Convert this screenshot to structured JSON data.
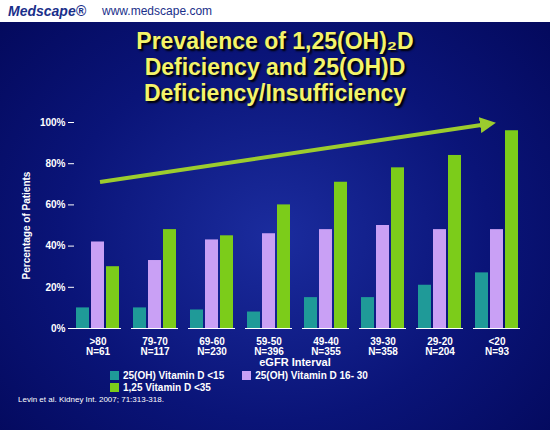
{
  "header": {
    "logo": "Medscape®",
    "url": "www.medscape.com"
  },
  "chart_data": {
    "type": "bar",
    "title": "Prevalence of 1,25(OH)₂D Deficiency and 25(OH)D Deficiency/Insufficiency",
    "categories": [
      ">80",
      "79-70",
      "69-60",
      "59-50",
      "49-40",
      "39-30",
      "29-20",
      "<20"
    ],
    "sample_sizes": [
      "N=61",
      "N=117",
      "N=230",
      "N=396",
      "N=355",
      "N=358",
      "N=204",
      "N=93"
    ],
    "x_label": "eGFR Interval",
    "y_label": "Percentage of Patients",
    "series": [
      {
        "name": "25(OH) Vitamin D <15",
        "color": "#1f9a98",
        "values": [
          10,
          10,
          9,
          8,
          15,
          15,
          21,
          27
        ]
      },
      {
        "name": "25(OH) Vitamin D 16- 30",
        "color": "#c9a0f5",
        "values": [
          42,
          33,
          43,
          46,
          48,
          50,
          48,
          48
        ]
      },
      {
        "name": "1,25 Vitamin D <35",
        "color": "#7ccc1a",
        "values": [
          30,
          48,
          45,
          60,
          71,
          78,
          84,
          96
        ]
      }
    ],
    "ylim": [
      0,
      100
    ],
    "yticks": [
      {
        "value": 0,
        "label": "0%"
      },
      {
        "value": 20,
        "label": "20%"
      },
      {
        "value": 40,
        "label": "40%"
      },
      {
        "value": 60,
        "label": "60%"
      },
      {
        "value": 80,
        "label": "80%"
      },
      {
        "value": 100,
        "label": "100%"
      }
    ],
    "grid": false,
    "legend": "bottom",
    "source": "Levin et al. Kidney Int. 2007; 71:313-318."
  }
}
